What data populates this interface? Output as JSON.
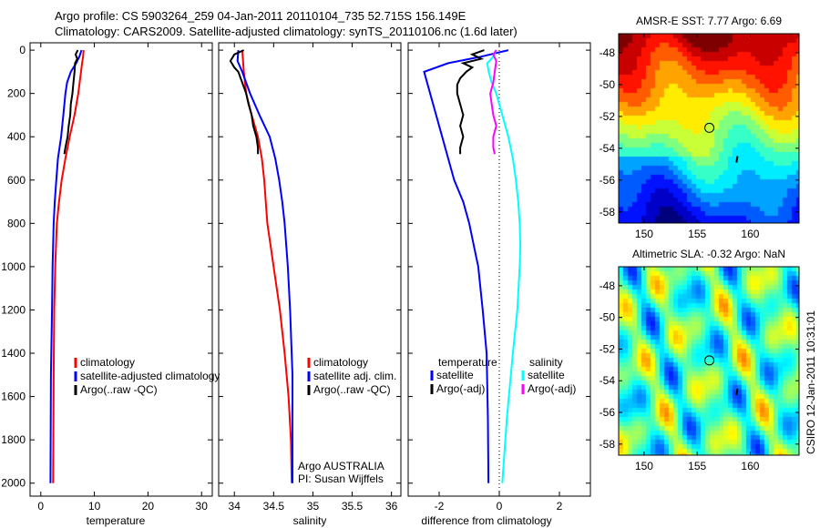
{
  "title": {
    "line1": "Argo profile: CS 5903264_259 04-Jan-2011 20110104_735 52.715S 156.149E",
    "line2": "Climatology: CARS2009. Satellite-adjusted climatology: synTS_20110106.nc (1.6d later)"
  },
  "credit": "CSIRO 12-Jan-2011 10:31:01",
  "colors": {
    "clim": "#ff0000",
    "sat": "#0000ff",
    "argo": "#000000",
    "sal_sat": "#00ffff",
    "sal_argo": "#ff00ff"
  },
  "chart_data": [
    {
      "type": "line",
      "xlabel": "temperature",
      "xlim": [
        -2,
        32
      ],
      "ylim": [
        2060,
        -34
      ],
      "xticks": [
        0,
        10,
        20,
        30
      ],
      "yticks": [
        0,
        200,
        400,
        600,
        800,
        1000,
        1200,
        1400,
        1600,
        1800,
        2000
      ],
      "legend": [
        "climatology",
        "satellite-adjusted climatology",
        "Argo(..raw -QC)"
      ],
      "series": [
        {
          "name": "climatology",
          "color": "clim",
          "depth": [
            0,
            30,
            60,
            100,
            200,
            300,
            400,
            500,
            600,
            700,
            800,
            1000,
            1200,
            1500,
            2000
          ],
          "values": [
            8,
            7.9,
            7.7,
            7.5,
            7,
            6.3,
            5.4,
            4.6,
            3.9,
            3.4,
            3,
            2.7,
            2.5,
            2.4,
            2.3
          ]
        },
        {
          "name": "satellite-adjusted climatology",
          "color": "sat",
          "depth": [
            0,
            30,
            60,
            100,
            150,
            200,
            300,
            400,
            500,
            600,
            700,
            800,
            1000,
            1200,
            1500,
            2000
          ],
          "values": [
            7.6,
            7.2,
            6.6,
            5.6,
            4.9,
            4.6,
            4.2,
            3.8,
            3.2,
            2.9,
            2.6,
            2.4,
            2.2,
            2.1,
            1.9,
            1.8
          ]
        },
        {
          "name": "Argo(..raw -QC)",
          "color": "argo",
          "depth": [
            0,
            20,
            40,
            60,
            100,
            150,
            200,
            250,
            300,
            350,
            400,
            450,
            480
          ],
          "values": [
            6.9,
            6.5,
            6.8,
            6.4,
            6.3,
            6.1,
            5.9,
            5.6,
            5.5,
            5.2,
            5,
            4.6,
            4.4
          ]
        }
      ]
    },
    {
      "type": "line",
      "xlabel": "salinity",
      "xlim": [
        33.8,
        36.12
      ],
      "ylim": [
        2060,
        -34
      ],
      "xticks": [
        34,
        34.5,
        35,
        35.5,
        36
      ],
      "legend": [
        "climatology",
        "satellite adj. clim.",
        "Argo(..raw -QC)"
      ],
      "annotation": [
        "Argo AUSTRALIA",
        "PI: Susan Wijffels"
      ],
      "series": [
        {
          "name": "climatology",
          "color": "clim",
          "depth": [
            0,
            100,
            200,
            300,
            400,
            500,
            600,
            700,
            800,
            900,
            1000,
            1200,
            1400,
            1600,
            1800,
            2000
          ],
          "values": [
            34.1,
            34.12,
            34.15,
            34.22,
            34.3,
            34.35,
            34.38,
            34.4,
            34.42,
            34.46,
            34.5,
            34.58,
            34.64,
            34.69,
            34.72,
            34.73
          ]
        },
        {
          "name": "satellite adj. clim.",
          "color": "sat",
          "depth": [
            0,
            50,
            100,
            200,
            300,
            400,
            500,
            600,
            700,
            800,
            1000,
            1200,
            1500,
            2000
          ],
          "values": [
            34.05,
            34.04,
            34.1,
            34.2,
            34.32,
            34.45,
            34.52,
            34.57,
            34.61,
            34.64,
            34.68,
            34.71,
            34.74,
            34.74
          ]
        },
        {
          "name": "Argo(..raw -QC)",
          "color": "argo",
          "depth": [
            0,
            20,
            50,
            80,
            100,
            150,
            200,
            250,
            300,
            350,
            400,
            450,
            480
          ],
          "values": [
            34.12,
            34.0,
            33.95,
            34.0,
            34.05,
            34.1,
            34.15,
            34.18,
            34.22,
            34.24,
            34.28,
            34.3,
            34.3
          ]
        }
      ]
    },
    {
      "type": "line",
      "xlabel": "difference from climatology",
      "xlim": [
        -3.03,
        3.03
      ],
      "ylim": [
        2060,
        -34
      ],
      "xticks": [
        -2,
        0,
        2
      ],
      "legend": {
        "temperature": "temperature",
        "salinity": "salinity",
        "t_sat": "satellite",
        "t_argo": "Argo(-adj)",
        "s_sat": "satellite",
        "s_argo": "Argo(-adj)"
      },
      "series": [
        {
          "name": "temperature satellite",
          "color": "sat",
          "depth": [
            0,
            30,
            60,
            100,
            150,
            200,
            300,
            400,
            500,
            600,
            700,
            800,
            900,
            1000,
            1200,
            1400,
            1700,
            2000
          ],
          "values": [
            0.3,
            -0.6,
            -1.7,
            -2.5,
            -2.4,
            -2.3,
            -2.1,
            -1.9,
            -1.7,
            -1.5,
            -1.2,
            -1.0,
            -0.85,
            -0.7,
            -0.55,
            -0.42,
            -0.38,
            -0.36
          ]
        },
        {
          "name": "temperature Argo(-adj)",
          "color": "argo",
          "depth": [
            0,
            20,
            40,
            60,
            80,
            100,
            130,
            160,
            200,
            250,
            300,
            350,
            400,
            450,
            480
          ],
          "values": [
            -0.5,
            -0.9,
            -0.6,
            -1.2,
            -0.9,
            -1.1,
            -1.3,
            -1.4,
            -1.4,
            -1.3,
            -1.2,
            -1.3,
            -1.2,
            -1.3,
            -1.3
          ]
        },
        {
          "name": "salinity satellite",
          "color": "sal_sat",
          "depth": [
            0,
            30,
            60,
            100,
            150,
            200,
            300,
            400,
            500,
            600,
            700,
            800,
            900,
            1000,
            1200,
            1400,
            1700,
            2000
          ],
          "values": [
            -0.1,
            -0.2,
            -0.4,
            -0.35,
            -0.25,
            -0.1,
            0.1,
            0.3,
            0.45,
            0.55,
            0.63,
            0.68,
            0.7,
            0.68,
            0.6,
            0.45,
            0.25,
            0.1
          ]
        },
        {
          "name": "salinity Argo(-adj)",
          "color": "sal_argo",
          "depth": [
            0,
            20,
            50,
            100,
            150,
            200,
            250,
            300,
            350,
            400,
            450,
            480
          ],
          "values": [
            -0.1,
            -0.2,
            -0.1,
            -0.15,
            -0.2,
            -0.3,
            -0.25,
            -0.2,
            -0.1,
            -0.2,
            -0.2,
            -0.15
          ]
        }
      ]
    },
    {
      "type": "heatmap",
      "title": "AMSR-E SST: 7.77 Argo: 6.69",
      "xlim": [
        147.6,
        164.6
      ],
      "ylim": [
        -46.8,
        -58.7
      ],
      "xticks": [
        150,
        155,
        160
      ],
      "yticks": [
        -48,
        -50,
        -52,
        -54,
        -56,
        -58
      ],
      "marker": [
        156.149,
        -52.715
      ]
    },
    {
      "type": "heatmap",
      "title": "Altimetric SLA: -0.32 Argo: NaN",
      "xlim": [
        147.6,
        164.6
      ],
      "ylim": [
        -46.8,
        -58.7
      ],
      "xticks": [
        150,
        155,
        160
      ],
      "yticks": [
        -48,
        -50,
        -52,
        -54,
        -56,
        -58
      ],
      "marker": [
        156.149,
        -52.715
      ]
    }
  ]
}
